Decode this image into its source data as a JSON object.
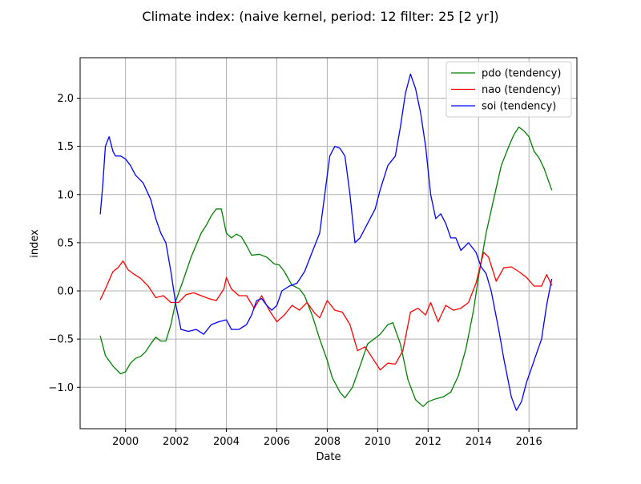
{
  "chart_data": {
    "type": "line",
    "title": "Climate index: (naive kernel, period: 12 filter: 25 [2 yr])",
    "xlabel": "Date",
    "ylabel": "index",
    "xlim": [
      1998.2,
      2017.9
    ],
    "ylim": [
      -1.43,
      2.42
    ],
    "xticks": [
      2000,
      2002,
      2004,
      2006,
      2008,
      2010,
      2012,
      2014,
      2016
    ],
    "xtick_labels": [
      "2000",
      "2002",
      "2004",
      "2006",
      "2008",
      "2010",
      "2012",
      "2014",
      "2016"
    ],
    "yticks": [
      -1.0,
      -0.5,
      0.0,
      0.5,
      1.0,
      1.5,
      2.0
    ],
    "ytick_labels": [
      "−1.0",
      "−0.5",
      "0.0",
      "0.5",
      "1.0",
      "1.5",
      "2.0"
    ],
    "grid": true,
    "legend_position": "top-right",
    "series": [
      {
        "name": "pdo (tendency)",
        "color": "#008000",
        "x": [
          1999.0,
          1999.2,
          1999.5,
          1999.8,
          2000.0,
          2000.2,
          2000.4,
          2000.6,
          2000.8,
          2001.0,
          2001.2,
          2001.4,
          2001.6,
          2001.8,
          2002.0,
          2002.3,
          2002.6,
          2003.0,
          2003.2,
          2003.4,
          2003.6,
          2003.8,
          2004.0,
          2004.2,
          2004.4,
          2004.6,
          2004.8,
          2005.0,
          2005.3,
          2005.6,
          2005.9,
          2006.1,
          2006.3,
          2006.6,
          2006.9,
          2007.1,
          2007.4,
          2007.7,
          2008.0,
          2008.2,
          2008.5,
          2008.7,
          2009.0,
          2009.3,
          2009.6,
          2009.9,
          2010.1,
          2010.4,
          2010.6,
          2010.9,
          2011.2,
          2011.5,
          2011.8,
          2012.0,
          2012.3,
          2012.6,
          2012.9,
          2013.2,
          2013.5,
          2013.8,
          2014.0,
          2014.3,
          2014.6,
          2014.9,
          2015.2,
          2015.4,
          2015.6,
          2015.8,
          2016.0,
          2016.2,
          2016.4,
          2016.6,
          2016.8,
          2016.9
        ],
        "y": [
          -0.47,
          -0.67,
          -0.78,
          -0.86,
          -0.84,
          -0.75,
          -0.7,
          -0.68,
          -0.63,
          -0.55,
          -0.48,
          -0.52,
          -0.52,
          -0.35,
          -0.1,
          0.12,
          0.35,
          0.6,
          0.68,
          0.78,
          0.85,
          0.85,
          0.6,
          0.55,
          0.59,
          0.56,
          0.47,
          0.37,
          0.38,
          0.35,
          0.28,
          0.27,
          0.2,
          0.06,
          0.02,
          -0.05,
          -0.25,
          -0.5,
          -0.72,
          -0.9,
          -1.05,
          -1.11,
          -1.0,
          -0.78,
          -0.55,
          -0.49,
          -0.45,
          -0.35,
          -0.33,
          -0.55,
          -0.92,
          -1.13,
          -1.2,
          -1.15,
          -1.12,
          -1.1,
          -1.05,
          -0.88,
          -0.6,
          -0.2,
          0.15,
          0.6,
          0.95,
          1.3,
          1.5,
          1.62,
          1.7,
          1.66,
          1.6,
          1.45,
          1.38,
          1.27,
          1.12,
          1.05
        ]
      },
      {
        "name": "nao (tendency)",
        "color": "#ff0000",
        "x": [
          1999.0,
          1999.2,
          1999.5,
          1999.7,
          1999.9,
          2000.1,
          2000.3,
          2000.6,
          2000.9,
          2001.2,
          2001.5,
          2001.8,
          2002.1,
          2002.4,
          2002.7,
          2003.0,
          2003.3,
          2003.6,
          2003.9,
          2004.0,
          2004.2,
          2004.5,
          2004.8,
          2005.1,
          2005.4,
          2005.7,
          2006.0,
          2006.3,
          2006.6,
          2006.9,
          2007.2,
          2007.5,
          2007.7,
          2008.0,
          2008.3,
          2008.6,
          2008.9,
          2009.2,
          2009.5,
          2009.8,
          2010.1,
          2010.4,
          2010.7,
          2011.0,
          2011.3,
          2011.6,
          2011.9,
          2012.1,
          2012.4,
          2012.7,
          2013.0,
          2013.3,
          2013.6,
          2013.9,
          2014.2,
          2014.4,
          2014.7,
          2015.0,
          2015.3,
          2015.6,
          2015.9,
          2016.2,
          2016.5,
          2016.7,
          2016.9
        ],
        "y": [
          -0.09,
          0.02,
          0.2,
          0.24,
          0.31,
          0.22,
          0.18,
          0.13,
          0.05,
          -0.07,
          -0.05,
          -0.12,
          -0.12,
          -0.04,
          -0.02,
          -0.05,
          -0.08,
          -0.1,
          0.02,
          0.14,
          0.02,
          -0.05,
          -0.05,
          -0.18,
          -0.05,
          -0.2,
          -0.32,
          -0.25,
          -0.15,
          -0.2,
          -0.12,
          -0.23,
          -0.28,
          -0.1,
          -0.2,
          -0.22,
          -0.35,
          -0.62,
          -0.58,
          -0.7,
          -0.82,
          -0.75,
          -0.76,
          -0.62,
          -0.22,
          -0.18,
          -0.25,
          -0.12,
          -0.32,
          -0.15,
          -0.2,
          -0.18,
          -0.12,
          0.08,
          0.4,
          0.35,
          0.1,
          0.24,
          0.25,
          0.2,
          0.14,
          0.05,
          0.05,
          0.17,
          0.06
        ]
      },
      {
        "name": "soi (tendency)",
        "color": "#0000ff",
        "x": [
          1999.0,
          1999.1,
          1999.2,
          1999.35,
          1999.5,
          1999.6,
          1999.8,
          2000.0,
          2000.2,
          2000.4,
          2000.7,
          2001.0,
          2001.2,
          2001.4,
          2001.6,
          2001.8,
          2002.0,
          2002.2,
          2002.5,
          2002.8,
          2003.1,
          2003.4,
          2003.7,
          2004.0,
          2004.2,
          2004.5,
          2004.8,
          2005.0,
          2005.2,
          2005.4,
          2005.6,
          2005.8,
          2006.0,
          2006.2,
          2006.5,
          2006.8,
          2007.1,
          2007.4,
          2007.7,
          2007.9,
          2008.1,
          2008.3,
          2008.5,
          2008.7,
          2008.9,
          2009.1,
          2009.3,
          2009.6,
          2009.9,
          2010.1,
          2010.4,
          2010.7,
          2010.9,
          2011.1,
          2011.3,
          2011.5,
          2011.7,
          2011.9,
          2012.1,
          2012.3,
          2012.5,
          2012.7,
          2012.9,
          2013.1,
          2013.3,
          2013.6,
          2013.9,
          2014.1,
          2014.3,
          2014.5,
          2014.8,
          2015.0,
          2015.3,
          2015.5,
          2015.7,
          2015.9,
          2016.1,
          2016.3,
          2016.5,
          2016.7,
          2016.9
        ],
        "y": [
          0.8,
          1.1,
          1.5,
          1.6,
          1.45,
          1.4,
          1.4,
          1.37,
          1.3,
          1.2,
          1.12,
          0.95,
          0.75,
          0.6,
          0.5,
          0.2,
          -0.15,
          -0.4,
          -0.42,
          -0.4,
          -0.45,
          -0.35,
          -0.32,
          -0.3,
          -0.4,
          -0.4,
          -0.35,
          -0.25,
          -0.1,
          -0.08,
          -0.15,
          -0.2,
          -0.15,
          0.0,
          0.05,
          0.08,
          0.2,
          0.4,
          0.6,
          1.0,
          1.4,
          1.5,
          1.48,
          1.4,
          1.0,
          0.5,
          0.55,
          0.7,
          0.85,
          1.05,
          1.3,
          1.4,
          1.7,
          2.05,
          2.25,
          2.1,
          1.85,
          1.5,
          1.0,
          0.75,
          0.8,
          0.7,
          0.55,
          0.55,
          0.42,
          0.5,
          0.4,
          0.25,
          0.18,
          0.0,
          -0.4,
          -0.7,
          -1.1,
          -1.24,
          -1.15,
          -0.95,
          -0.8,
          -0.65,
          -0.5,
          -0.15,
          0.12
        ]
      }
    ]
  }
}
